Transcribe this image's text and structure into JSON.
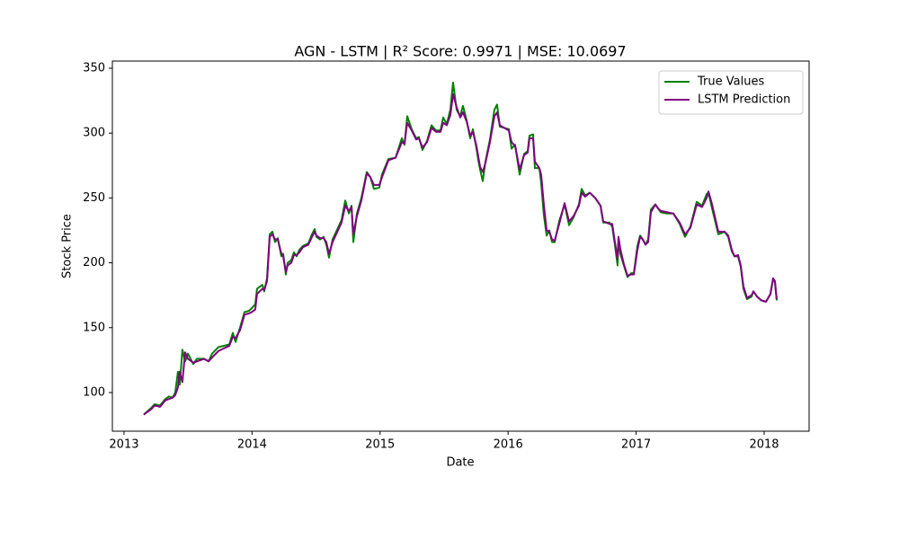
{
  "chart_data": {
    "type": "line",
    "title": "AGN - LSTM | R² Score: 0.9971 | MSE: 10.0697",
    "x_label": "Date",
    "y_label": "Stock Price",
    "x": [
      2013.154,
      2013.211,
      2013.239,
      2013.281,
      2013.323,
      2013.351,
      2013.379,
      2013.4,
      2013.421,
      2013.435,
      2013.456,
      2013.477,
      2013.499,
      2013.541,
      2013.569,
      2013.625,
      2013.66,
      2013.688,
      2013.737,
      2013.779,
      2013.822,
      2013.85,
      2013.871,
      2013.906,
      2013.941,
      2013.976,
      2013.997,
      2014.025,
      2014.039,
      2014.081,
      2014.095,
      2014.117,
      2014.138,
      2014.159,
      2014.18,
      2014.201,
      2014.229,
      2014.243,
      2014.264,
      2014.278,
      2014.306,
      2014.327,
      2014.348,
      2014.369,
      2014.397,
      2014.44,
      2014.468,
      2014.489,
      2014.503,
      2014.531,
      2014.559,
      2014.58,
      2014.601,
      2014.629,
      2014.699,
      2014.728,
      2014.756,
      2014.777,
      2014.791,
      2014.819,
      2014.854,
      2014.896,
      2014.924,
      2014.952,
      2014.994,
      2015.015,
      2015.065,
      2015.121,
      2015.17,
      2015.191,
      2015.212,
      2015.247,
      2015.282,
      2015.303,
      2015.331,
      2015.367,
      2015.402,
      2015.437,
      2015.472,
      2015.493,
      2015.521,
      2015.549,
      2015.57,
      2015.598,
      2015.626,
      2015.647,
      2015.676,
      2015.704,
      2015.725,
      2015.753,
      2015.767,
      2015.781,
      2015.802,
      2015.823,
      2015.858,
      2015.893,
      2015.914,
      2015.935,
      2016.006,
      2016.027,
      2016.055,
      2016.09,
      2016.125,
      2016.153,
      2016.167,
      2016.195,
      2016.209,
      2016.244,
      2016.258,
      2016.279,
      2016.301,
      2016.322,
      2016.343,
      2016.364,
      2016.399,
      2016.441,
      2016.476,
      2016.511,
      2016.553,
      2016.574,
      2016.602,
      2016.638,
      2016.68,
      2016.722,
      2016.743,
      2016.792,
      2016.813,
      2016.834,
      2016.855,
      2016.862,
      2016.876,
      2016.904,
      2016.933,
      2016.961,
      2016.982,
      2017.01,
      2017.031,
      2017.052,
      2017.073,
      2017.094,
      2017.115,
      2017.15,
      2017.171,
      2017.192,
      2017.242,
      2017.291,
      2017.34,
      2017.382,
      2017.424,
      2017.473,
      2017.515,
      2017.551,
      2017.565,
      2017.593,
      2017.642,
      2017.691,
      2017.719,
      2017.747,
      2017.768,
      2017.796,
      2017.817,
      2017.838,
      2017.866,
      2017.902,
      2017.916,
      2017.944,
      2017.979,
      2018.014,
      2018.049,
      2018.07,
      2018.084,
      2018.098
    ],
    "series": [
      {
        "name": "True Values",
        "color": "#008000",
        "values": [
          83,
          88,
          91,
          90,
          95,
          97,
          96,
          100,
          116,
          106,
          133,
          124,
          130,
          122,
          126,
          126,
          124,
          130,
          135,
          136,
          137,
          146,
          139,
          150,
          162,
          163,
          165,
          168,
          180,
          183,
          178,
          188,
          222,
          224,
          216,
          219,
          205,
          207,
          191,
          200,
          202,
          208,
          205,
          210,
          213,
          215,
          222,
          226,
          220,
          218,
          220,
          214,
          204,
          218,
          233,
          248,
          238,
          244,
          216,
          238,
          250,
          270,
          266,
          257,
          258,
          268,
          280,
          281,
          296,
          291,
          313,
          303,
          296,
          297,
          287,
          294,
          306,
          302,
          302,
          312,
          307,
          318,
          339,
          318,
          313,
          321,
          310,
          296,
          303,
          288,
          279,
          272,
          263,
          278,
          295,
          318,
          322,
          305,
          303,
          288,
          291,
          268,
          284,
          286,
          298,
          299,
          273,
          273,
          262,
          237,
          221,
          225,
          216,
          216,
          232,
          245,
          229,
          235,
          245,
          257,
          252,
          254,
          250,
          244,
          231,
          231,
          228,
          214,
          198,
          218,
          207,
          198,
          189,
          192,
          192,
          213,
          221,
          218,
          214,
          218,
          241,
          245,
          242,
          239,
          238,
          238,
          230,
          220,
          228,
          247,
          244,
          253,
          254,
          242,
          222,
          224,
          220,
          209,
          205,
          205,
          197,
          180,
          172,
          174,
          178,
          174,
          171,
          170,
          176,
          188,
          185,
          171
        ]
      },
      {
        "name": "LSTM Prediction",
        "color": "#800080",
        "values": [
          83,
          87,
          90,
          89,
          94,
          95,
          96,
          98,
          104,
          116,
          108,
          131,
          126,
          123,
          124,
          126,
          124,
          127,
          132,
          134,
          136,
          143,
          142,
          148,
          160,
          161,
          162,
          164,
          176,
          180,
          179,
          186,
          220,
          222,
          218,
          218,
          207,
          205,
          193,
          198,
          200,
          206,
          206,
          208,
          212,
          214,
          220,
          224,
          221,
          219,
          219,
          216,
          207,
          216,
          231,
          244,
          240,
          243,
          222,
          236,
          248,
          269,
          266,
          260,
          260,
          266,
          279,
          281,
          293,
          292,
          308,
          302,
          295,
          296,
          289,
          293,
          304,
          301,
          301,
          308,
          306,
          314,
          330,
          320,
          312,
          316,
          309,
          298,
          301,
          290,
          282,
          274,
          270,
          277,
          293,
          313,
          316,
          306,
          302,
          293,
          290,
          272,
          283,
          285,
          296,
          296,
          278,
          273,
          268,
          245,
          225,
          224,
          218,
          217,
          230,
          246,
          232,
          236,
          244,
          254,
          251,
          254,
          250,
          244,
          232,
          230,
          230,
          216,
          203,
          220,
          211,
          199,
          190,
          191,
          191,
          210,
          220,
          218,
          214,
          216,
          239,
          245,
          242,
          240,
          239,
          238,
          231,
          222,
          227,
          245,
          243,
          250,
          255,
          245,
          224,
          224,
          221,
          210,
          205,
          206,
          198,
          182,
          173,
          175,
          178,
          174,
          171,
          170,
          176,
          188,
          186,
          172
        ]
      }
    ],
    "xlim": [
      2012.909,
      2018.351
    ],
    "ylim": [
      70.2,
      355.5
    ],
    "xticks": [
      2013,
      2014,
      2015,
      2016,
      2017,
      2018
    ],
    "yticks": [
      100,
      150,
      200,
      250,
      300,
      350
    ],
    "legend": "upper right"
  }
}
